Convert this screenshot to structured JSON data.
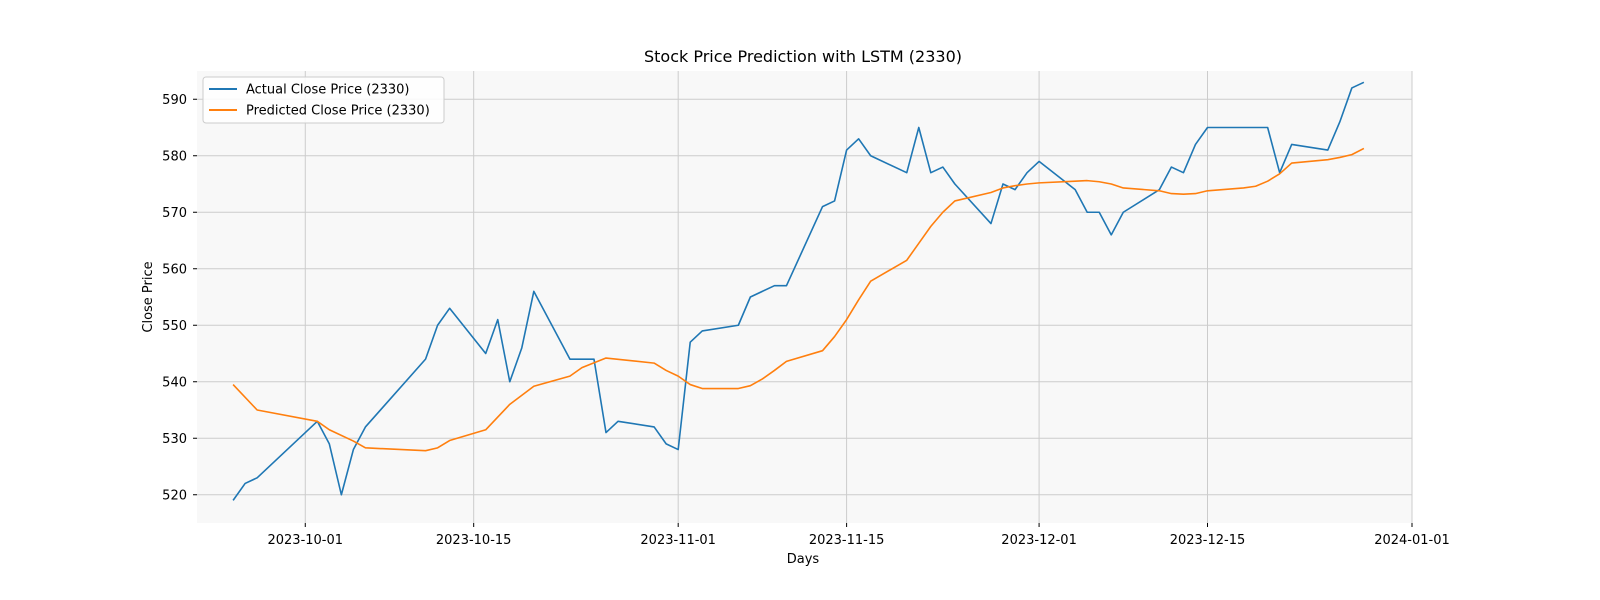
{
  "chart_data": {
    "type": "line",
    "title": "Stock Price Prediction with LSTM (2330)",
    "xlabel": "Days",
    "ylabel": "Close Price",
    "xlim": [
      "2023-09-22",
      "2024-01-01"
    ],
    "ylim": [
      515,
      595
    ],
    "x_ticks": [
      "2023-10-01",
      "2023-10-15",
      "2023-11-01",
      "2023-11-15",
      "2023-12-01",
      "2023-12-15",
      "2024-01-01"
    ],
    "y_ticks": [
      520,
      530,
      540,
      550,
      560,
      570,
      580,
      590
    ],
    "grid": true,
    "legend_position": "upper-left",
    "series": [
      {
        "name": "Actual Close Price (2330)",
        "color": "#1f77b4",
        "points": [
          [
            "2023-09-25",
            519
          ],
          [
            "2023-09-26",
            522
          ],
          [
            "2023-09-27",
            523
          ],
          [
            "2023-10-02",
            533
          ],
          [
            "2023-10-03",
            529
          ],
          [
            "2023-10-04",
            520
          ],
          [
            "2023-10-05",
            528
          ],
          [
            "2023-10-06",
            532
          ],
          [
            "2023-10-11",
            544
          ],
          [
            "2023-10-12",
            550
          ],
          [
            "2023-10-13",
            553
          ],
          [
            "2023-10-16",
            545
          ],
          [
            "2023-10-17",
            551
          ],
          [
            "2023-10-18",
            540
          ],
          [
            "2023-10-19",
            546
          ],
          [
            "2023-10-20",
            556
          ],
          [
            "2023-10-23",
            544
          ],
          [
            "2023-10-24",
            544
          ],
          [
            "2023-10-25",
            544
          ],
          [
            "2023-10-26",
            531
          ],
          [
            "2023-10-27",
            533
          ],
          [
            "2023-10-30",
            532
          ],
          [
            "2023-10-31",
            529
          ],
          [
            "2023-11-01",
            528
          ],
          [
            "2023-11-02",
            547
          ],
          [
            "2023-11-03",
            549
          ],
          [
            "2023-11-06",
            550
          ],
          [
            "2023-11-07",
            555
          ],
          [
            "2023-11-09",
            557
          ],
          [
            "2023-11-10",
            557
          ],
          [
            "2023-11-13",
            571
          ],
          [
            "2023-11-14",
            572
          ],
          [
            "2023-11-15",
            581
          ],
          [
            "2023-11-16",
            583
          ],
          [
            "2023-11-17",
            580
          ],
          [
            "2023-11-20",
            577
          ],
          [
            "2023-11-21",
            585
          ],
          [
            "2023-11-22",
            577
          ],
          [
            "2023-11-23",
            578
          ],
          [
            "2023-11-24",
            575
          ],
          [
            "2023-11-27",
            568
          ],
          [
            "2023-11-28",
            575
          ],
          [
            "2023-11-29",
            574
          ],
          [
            "2023-11-30",
            577
          ],
          [
            "2023-12-01",
            579
          ],
          [
            "2023-12-04",
            574
          ],
          [
            "2023-12-05",
            570
          ],
          [
            "2023-12-06",
            570
          ],
          [
            "2023-12-07",
            566
          ],
          [
            "2023-12-08",
            570
          ],
          [
            "2023-12-11",
            574
          ],
          [
            "2023-12-12",
            578
          ],
          [
            "2023-12-13",
            577
          ],
          [
            "2023-12-14",
            582
          ],
          [
            "2023-12-15",
            585
          ],
          [
            "2023-12-18",
            585
          ],
          [
            "2023-12-19",
            585
          ],
          [
            "2023-12-20",
            585
          ],
          [
            "2023-12-21",
            577
          ],
          [
            "2023-12-22",
            582
          ],
          [
            "2023-12-25",
            581
          ],
          [
            "2023-12-26",
            586
          ],
          [
            "2023-12-27",
            592
          ],
          [
            "2023-12-28",
            593
          ]
        ]
      },
      {
        "name": "Predicted Close Price (2330)",
        "color": "#ff7f0e",
        "points": [
          [
            "2023-09-25",
            539.5
          ],
          [
            "2023-09-27",
            535
          ],
          [
            "2023-10-02",
            533
          ],
          [
            "2023-10-03",
            531.5
          ],
          [
            "2023-10-05",
            529.5
          ],
          [
            "2023-10-06",
            528.3
          ],
          [
            "2023-10-11",
            527.8
          ],
          [
            "2023-10-12",
            528.3
          ],
          [
            "2023-10-13",
            529.6
          ],
          [
            "2023-10-16",
            531.5
          ],
          [
            "2023-10-18",
            536
          ],
          [
            "2023-10-20",
            539.2
          ],
          [
            "2023-10-23",
            541
          ],
          [
            "2023-10-24",
            542.5
          ],
          [
            "2023-10-26",
            544.2
          ],
          [
            "2023-10-30",
            543.3
          ],
          [
            "2023-10-31",
            542
          ],
          [
            "2023-11-01",
            541
          ],
          [
            "2023-11-02",
            539.5
          ],
          [
            "2023-11-03",
            538.8
          ],
          [
            "2023-11-06",
            538.8
          ],
          [
            "2023-11-07",
            539.3
          ],
          [
            "2023-11-08",
            540.5
          ],
          [
            "2023-11-09",
            542
          ],
          [
            "2023-11-10",
            543.6
          ],
          [
            "2023-11-13",
            545.5
          ],
          [
            "2023-11-14",
            548
          ],
          [
            "2023-11-15",
            551
          ],
          [
            "2023-11-16",
            554.5
          ],
          [
            "2023-11-17",
            557.8
          ],
          [
            "2023-11-20",
            561.5
          ],
          [
            "2023-11-21",
            564.5
          ],
          [
            "2023-11-22",
            567.5
          ],
          [
            "2023-11-23",
            570
          ],
          [
            "2023-11-24",
            572
          ],
          [
            "2023-11-27",
            573.5
          ],
          [
            "2023-11-28",
            574.3
          ],
          [
            "2023-11-29",
            574.7
          ],
          [
            "2023-11-30",
            575
          ],
          [
            "2023-12-01",
            575.2
          ],
          [
            "2023-12-04",
            575.5
          ],
          [
            "2023-12-05",
            575.6
          ],
          [
            "2023-12-06",
            575.4
          ],
          [
            "2023-12-07",
            575
          ],
          [
            "2023-12-08",
            574.3
          ],
          [
            "2023-12-11",
            573.8
          ],
          [
            "2023-12-12",
            573.3
          ],
          [
            "2023-12-13",
            573.2
          ],
          [
            "2023-12-14",
            573.3
          ],
          [
            "2023-12-15",
            573.8
          ],
          [
            "2023-12-18",
            574.3
          ],
          [
            "2023-12-19",
            574.6
          ],
          [
            "2023-12-20",
            575.5
          ],
          [
            "2023-12-21",
            576.8
          ],
          [
            "2023-12-22",
            578.7
          ],
          [
            "2023-12-25",
            579.3
          ],
          [
            "2023-12-26",
            579.7
          ],
          [
            "2023-12-27",
            580.2
          ],
          [
            "2023-12-28",
            581.3
          ]
        ]
      }
    ]
  }
}
